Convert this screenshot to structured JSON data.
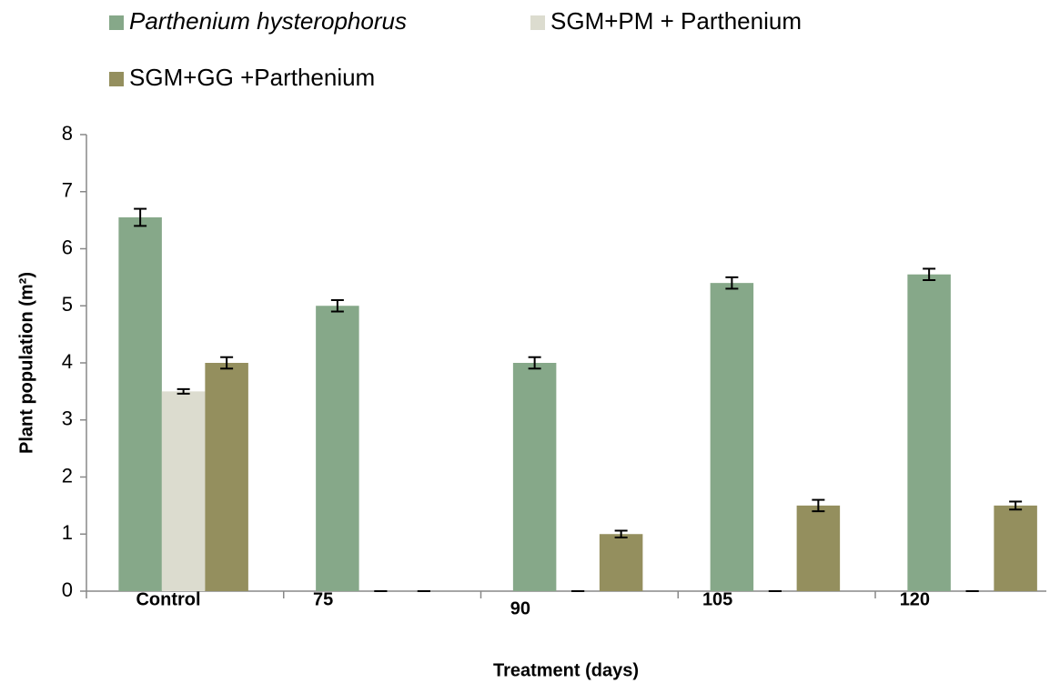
{
  "chart_data": {
    "type": "bar",
    "xlabel": "Treatment (days)",
    "ylabel": "Plant population (m²)",
    "categories": [
      "Control",
      "75",
      "90",
      "105",
      "120"
    ],
    "series": [
      {
        "name": "Parthenium hysterophorus",
        "color": "#86a889",
        "values": [
          6.55,
          5.0,
          4.0,
          5.4,
          5.55
        ],
        "errors": [
          0.15,
          0.1,
          0.1,
          0.1,
          0.1
        ]
      },
      {
        "name": "SGM+PM + Parthenium",
        "color": "#dcdccf",
        "values": [
          3.5,
          0,
          0,
          0,
          0
        ],
        "errors": [
          0.04,
          0,
          0,
          0,
          0
        ]
      },
      {
        "name": "SGM+GG +Parthenium",
        "color": "#948f5e",
        "values": [
          4.0,
          0,
          1.0,
          1.5,
          1.5
        ],
        "errors": [
          0.1,
          0,
          0.06,
          0.1,
          0.07
        ]
      }
    ],
    "ylim": [
      0,
      8
    ],
    "yticks": [
      0,
      1,
      2,
      3,
      4,
      5,
      6,
      7,
      8
    ],
    "grid": false
  }
}
